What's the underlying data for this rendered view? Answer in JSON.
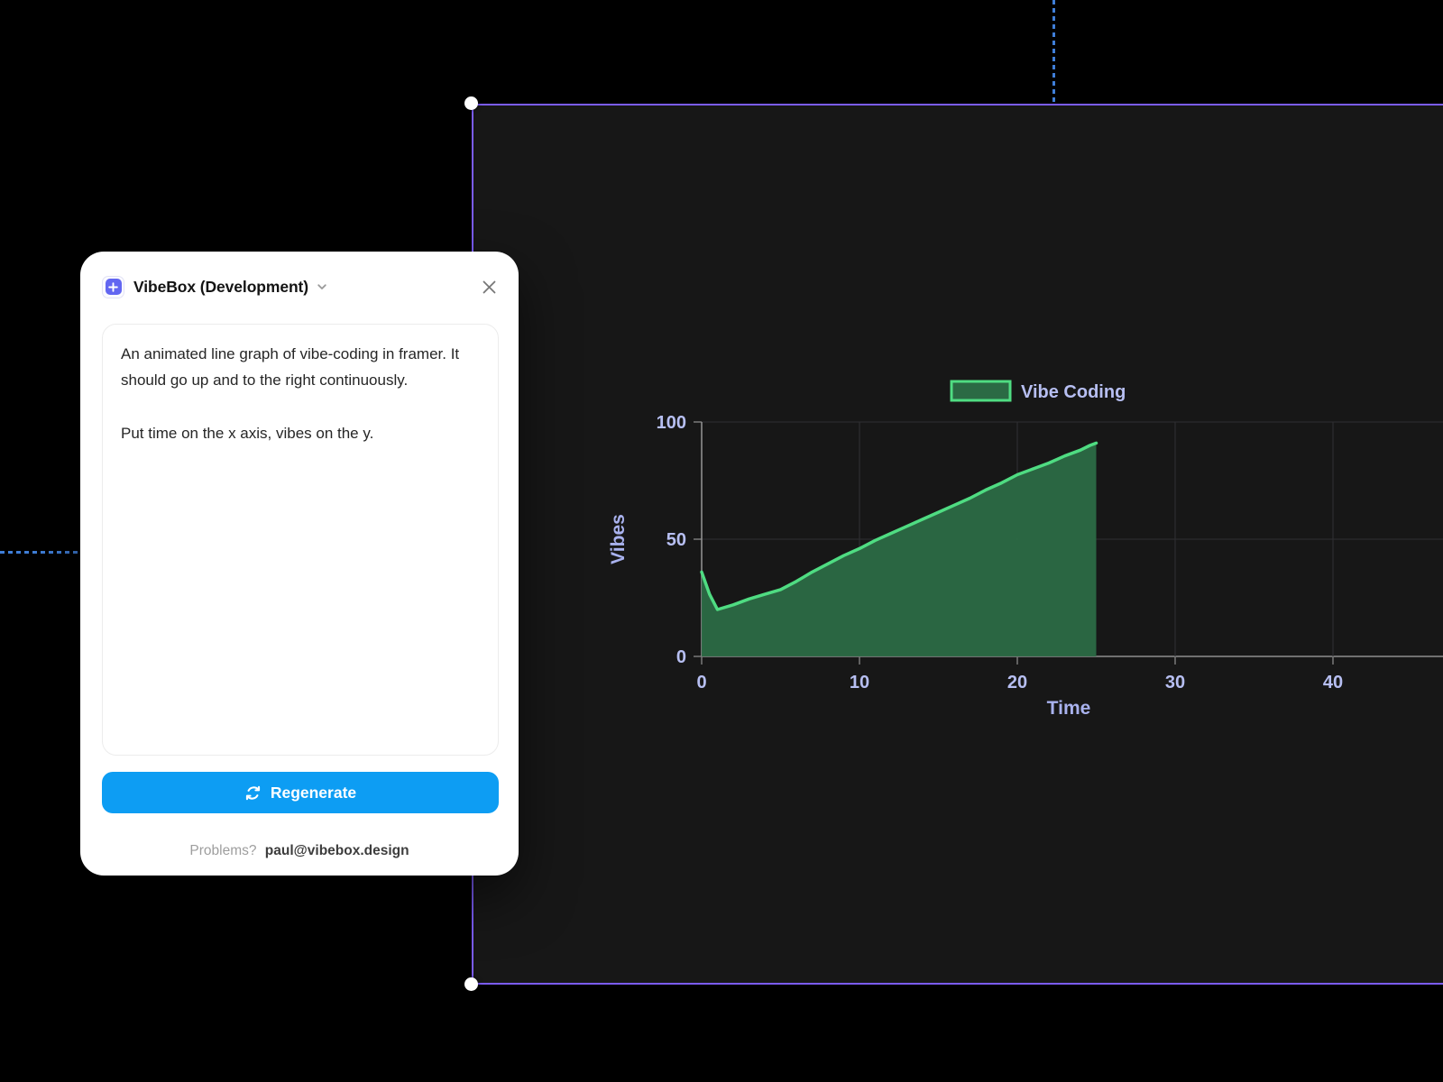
{
  "theme": {
    "canvas_bg": "#000000",
    "frame_bg": "#171717",
    "panel_bg": "#ffffff",
    "selection_purple": "#7b5cf6",
    "guide_blue": "#3f7ed8",
    "accent_blue": "#0d9df3"
  },
  "panel": {
    "title": "VibeBox (Development)",
    "prompt": "An animated line graph of vibe-coding in framer. It should go up and to the right continuously.\n\nPut time on the x axis, vibes on the y.",
    "regenerate_label": "Regenerate",
    "footer_prefix": "Problems?",
    "footer_email": "paul@vibebox.design"
  },
  "chart_data": {
    "type": "area",
    "title": "",
    "xlabel": "Time",
    "ylabel": "Vibes",
    "x_ticks": [
      0,
      10,
      20,
      30,
      40
    ],
    "y_ticks": [
      0,
      50,
      100
    ],
    "xlim": [
      0,
      47
    ],
    "ylim": [
      0,
      100
    ],
    "grid": true,
    "legend_position": "top",
    "series": [
      {
        "name": "Vibe Coding",
        "x": [
          0,
          0.5,
          1,
          2,
          3,
          4,
          5,
          6,
          7,
          8,
          9,
          10,
          11,
          12,
          13,
          14,
          15,
          16,
          17,
          18,
          19,
          20,
          21,
          22,
          23,
          24,
          24.6,
          25
        ],
        "y": [
          36,
          26.5,
          20,
          22,
          24.5,
          26.5,
          28.5,
          32,
          36,
          39.5,
          43,
          46,
          49.5,
          52.5,
          55.5,
          58.5,
          61.5,
          64.5,
          67.5,
          71,
          74,
          77.5,
          80,
          82.5,
          85.5,
          88,
          90,
          91
        ]
      }
    ],
    "line_color": "#4fdc82",
    "fill_color": "#2b6a44",
    "grid_color": "#2f2f33",
    "axis_color": "#8f8f8f",
    "tickmark_color": "#7a7a7a",
    "tick_color": "#b7bff2",
    "axis_title_color": "#a9b2ee"
  }
}
